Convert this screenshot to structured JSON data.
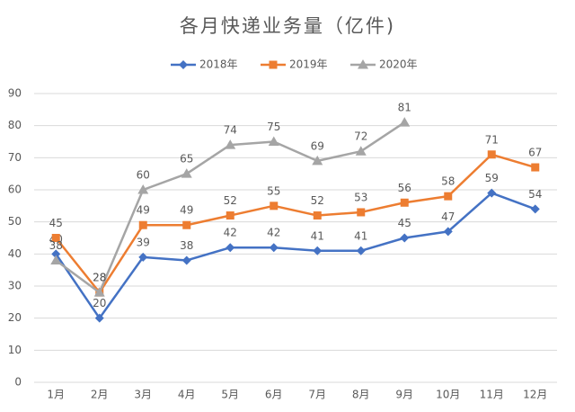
{
  "chart_data": {
    "type": "line",
    "title": "各月快递业务量（亿件)",
    "categories": [
      "1月",
      "2月",
      "3月",
      "4月",
      "5月",
      "6月",
      "7月",
      "8月",
      "9月",
      "10月",
      "11月",
      "12月"
    ],
    "series": [
      {
        "name": "2018年",
        "color": "#4472c4",
        "marker": "diamond",
        "values": [
          40,
          20,
          39,
          38,
          42,
          42,
          41,
          41,
          45,
          47,
          59,
          54
        ]
      },
      {
        "name": "2019年",
        "color": "#ed7d31",
        "marker": "square",
        "values": [
          45,
          28,
          49,
          49,
          52,
          55,
          52,
          53,
          56,
          58,
          71,
          67
        ]
      },
      {
        "name": "2020年",
        "color": "#a5a5a5",
        "marker": "triangle",
        "values": [
          38,
          28,
          60,
          65,
          74,
          75,
          69,
          72,
          81,
          null,
          null,
          null
        ]
      }
    ],
    "ylim": [
      0,
      90
    ],
    "yticks": [
      0,
      10,
      20,
      30,
      40,
      50,
      60,
      70,
      80,
      90
    ],
    "grid": true,
    "legend": "top",
    "data_labels": true
  }
}
